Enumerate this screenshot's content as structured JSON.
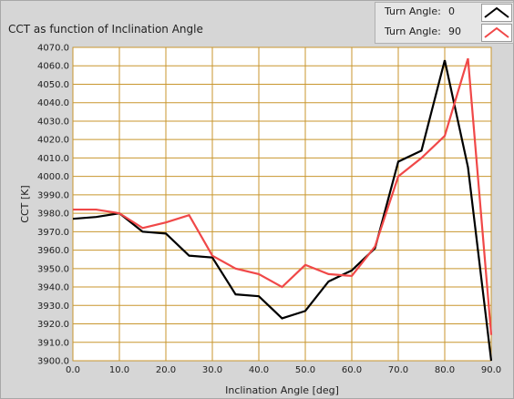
{
  "colors": {
    "series0": "#000000",
    "series1": "#f04848",
    "grid": "#c8962e",
    "plot_bg": "#ffffff"
  },
  "legend": {
    "rows": [
      {
        "label": "Turn Angle:",
        "value": "0"
      },
      {
        "label": "Turn Angle:",
        "value": "90"
      }
    ]
  },
  "chart_data": {
    "type": "line",
    "title": "CCT as function of Inclination Angle",
    "xlabel": "Inclination Angle [deg]",
    "ylabel": "CCT [K]",
    "xlim": [
      0,
      90
    ],
    "ylim": [
      3900,
      4070
    ],
    "x_ticks": [
      "0.0",
      "10.0",
      "20.0",
      "30.0",
      "40.0",
      "50.0",
      "60.0",
      "70.0",
      "80.0",
      "90.0"
    ],
    "y_ticks": [
      "3900.0",
      "3910.0",
      "3920.0",
      "3930.0",
      "3940.0",
      "3950.0",
      "3960.0",
      "3970.0",
      "3980.0",
      "3990.0",
      "4000.0",
      "4010.0",
      "4020.0",
      "4030.0",
      "4040.0",
      "4050.0",
      "4060.0",
      "4070.0"
    ],
    "grid": true,
    "legend_position": "top-right",
    "series": [
      {
        "name": "Turn Angle: 0",
        "x": [
          0,
          5,
          10,
          15,
          20,
          25,
          30,
          35,
          40,
          45,
          50,
          55,
          60,
          65,
          70,
          75,
          80,
          85,
          90
        ],
        "y": [
          3977,
          3978,
          3980,
          3970,
          3969,
          3957,
          3956,
          3936,
          3935,
          3923,
          3927,
          3943,
          3949,
          3961,
          4008,
          4014,
          4063,
          4005,
          3900
        ]
      },
      {
        "name": "Turn Angle: 90",
        "x": [
          0,
          5,
          10,
          15,
          20,
          25,
          30,
          35,
          40,
          45,
          50,
          55,
          60,
          65,
          70,
          75,
          80,
          85,
          90
        ],
        "y": [
          3982,
          3982,
          3980,
          3972,
          3975,
          3979,
          3957,
          3950,
          3947,
          3940,
          3952,
          3947,
          3946,
          3962,
          4000,
          4010,
          4022,
          4064,
          3914
        ]
      }
    ]
  }
}
